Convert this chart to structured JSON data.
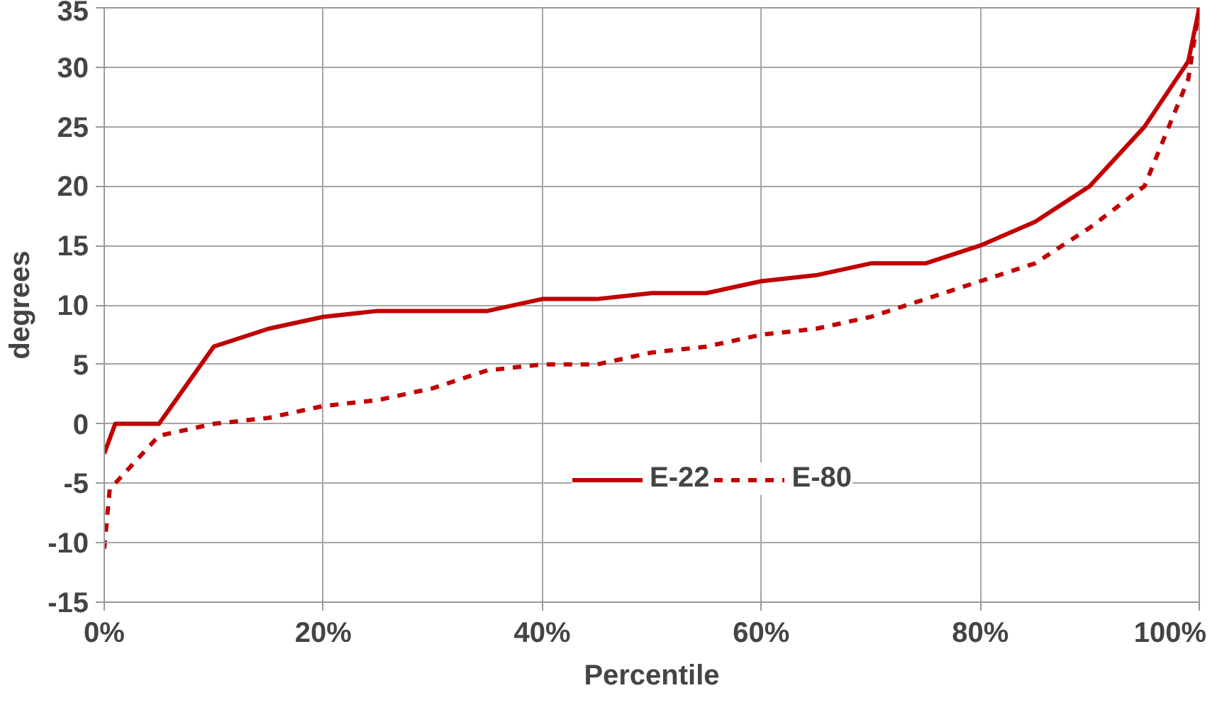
{
  "chart_data": {
    "type": "line",
    "xlabel": "Percentile",
    "ylabel": "degrees",
    "xlim": [
      0,
      1
    ],
    "ylim": [
      -15,
      35
    ],
    "xticks": [
      {
        "value": 0,
        "label": "0%"
      },
      {
        "value": 0.2,
        "label": "20%"
      },
      {
        "value": 0.4,
        "label": "40%"
      },
      {
        "value": 0.6,
        "label": "60%"
      },
      {
        "value": 0.8,
        "label": "80%"
      },
      {
        "value": 1,
        "label": "100%"
      }
    ],
    "yticks": [
      -15,
      -10,
      -5,
      0,
      5,
      10,
      15,
      20,
      25,
      30,
      35
    ],
    "grid": true,
    "legend": "bottom",
    "marker": "none",
    "series": [
      {
        "name": "E-22",
        "color": "#c00000",
        "line_style": "solid",
        "x": [
          0,
          0.01,
          0.05,
          0.1,
          0.15,
          0.2,
          0.25,
          0.3,
          0.35,
          0.4,
          0.45,
          0.5,
          0.55,
          0.6,
          0.65,
          0.7,
          0.75,
          0.8,
          0.85,
          0.9,
          0.95,
          0.99,
          1
        ],
        "values": [
          -2.5,
          0,
          0,
          6.5,
          8,
          9,
          9.5,
          9.5,
          9.5,
          10.5,
          10.5,
          11,
          11,
          12,
          12.5,
          13.5,
          13.5,
          15,
          17,
          20,
          25,
          30.5,
          35
        ]
      },
      {
        "name": "E-80",
        "color": "#c00000",
        "line_style": "dashed",
        "x": [
          0,
          0.005,
          0.02,
          0.05,
          0.1,
          0.15,
          0.2,
          0.25,
          0.3,
          0.35,
          0.4,
          0.45,
          0.5,
          0.55,
          0.6,
          0.65,
          0.7,
          0.75,
          0.8,
          0.85,
          0.9,
          0.95,
          0.99,
          1
        ],
        "values": [
          -10.5,
          -5.5,
          -4,
          -1,
          0,
          0.5,
          1.5,
          2,
          3,
          4.5,
          5,
          5,
          6,
          6.5,
          7.5,
          8,
          9,
          10.5,
          12,
          13.5,
          16.5,
          20,
          29,
          35
        ]
      }
    ]
  }
}
